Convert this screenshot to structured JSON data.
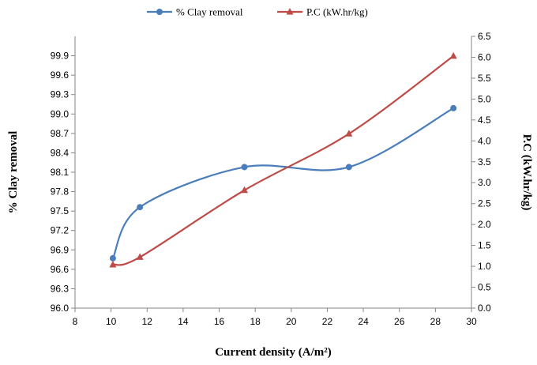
{
  "chart_data": {
    "type": "line",
    "xlabel": "Current density (A/m²)",
    "ylabel_left": "% Clay removal",
    "ylabel_right": "P.C (kW.hr/kg)",
    "xlim": [
      8,
      30
    ],
    "xticks": [
      8,
      10,
      12,
      14,
      16,
      18,
      20,
      22,
      24,
      26,
      28,
      30
    ],
    "ylim_left": [
      96.0,
      100.2
    ],
    "yticks_left": [
      "96.0",
      "96.3",
      "96.6",
      "96.9",
      "97.2",
      "97.5",
      "97.8",
      "98.1",
      "98.4",
      "98.7",
      "99.0",
      "99.3",
      "99.6",
      "99.9"
    ],
    "ylim_right": [
      0,
      6.5
    ],
    "yticks_right": [
      "0.0",
      "0.5",
      "1.0",
      "1.5",
      "2.0",
      "2.5",
      "3.0",
      "3.5",
      "4.0",
      "4.5",
      "5.0",
      "5.5",
      "6.0",
      "6.5"
    ],
    "grid": false,
    "legend_position": "top",
    "series": [
      {
        "name": "% Clay removal",
        "axis": "left",
        "color": "#4a7ebb",
        "marker": "circle",
        "smooth": true,
        "x": [
          10.1,
          11.6,
          17.4,
          23.2,
          29.0
        ],
        "y": [
          96.77,
          97.56,
          98.18,
          98.18,
          99.09
        ]
      },
      {
        "name": "P.C (kW.hr/kg)",
        "axis": "right",
        "color": "#be4b48",
        "marker": "triangle",
        "smooth": true,
        "x": [
          10.1,
          11.6,
          17.4,
          23.2,
          29.0
        ],
        "y": [
          1.04,
          1.22,
          2.82,
          4.17,
          6.03
        ]
      }
    ]
  }
}
